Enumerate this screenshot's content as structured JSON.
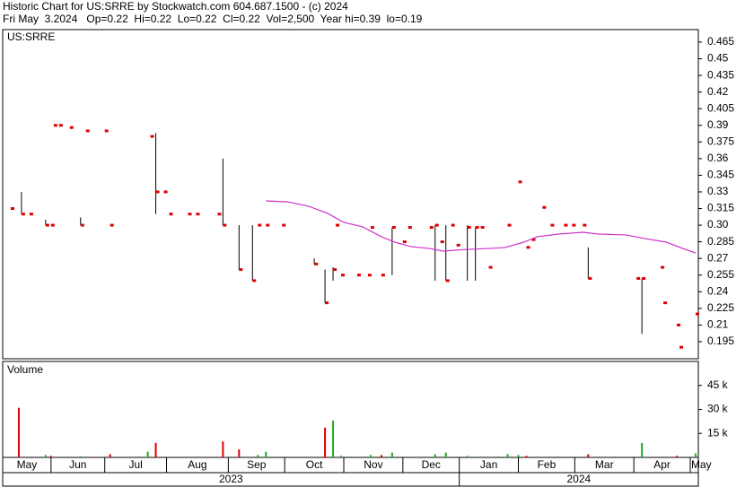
{
  "header": {
    "title": "Historic Chart for US:SRRE by Stockwatch.com 604.687.1500 - (c) 2024",
    "quote": "Fri May  3.2024   Op=0.22  Hi=0.22  Lo=0.22  Cl=0.22  Vol=2,500  Year hi=0.39  lo=0.19"
  },
  "chart_data": [
    {
      "type": "ohlc",
      "label": "US:SRRE",
      "x": [
        3,
        7,
        10,
        16,
        18,
        19,
        21,
        25,
        29,
        31,
        38,
        40,
        55,
        57,
        60,
        62,
        69,
        72,
        80,
        82,
        88,
        93,
        95,
        98,
        104,
        116,
        120,
        123,
        124,
        126,
        132,
        136,
        137,
        141,
        145,
        149,
        151,
        159,
        161,
        163,
        165,
        167,
        169,
        173,
        176,
        178,
        181,
        188,
        192,
        195,
        197,
        201,
        204,
        209,
        212,
        216,
        218,
        236,
        238,
        245,
        246,
        251,
        252,
        258
      ],
      "high": [
        0.315,
        0.33,
        0.31,
        0.305,
        0.3,
        0.39,
        0.39,
        0.388,
        0.307,
        0.385,
        0.385,
        0.3,
        0.38,
        0.383,
        0.33,
        0.31,
        0.31,
        0.31,
        0.31,
        0.36,
        0.3,
        0.3,
        0.3,
        0.3,
        0.3,
        0.27,
        0.26,
        0.262,
        0.3,
        0.255,
        0.255,
        0.255,
        0.298,
        0.255,
        0.298,
        0.285,
        0.298,
        0.298,
        0.3,
        0.285,
        0.3,
        0.3,
        0.282,
        0.3,
        0.298,
        0.298,
        0.262,
        0.3,
        0.339,
        0.28,
        0.287,
        0.316,
        0.3,
        0.3,
        0.3,
        0.3,
        0.28,
        0.252,
        0.252,
        0.262,
        0.23,
        0.21,
        0.19,
        0.22
      ],
      "low": [
        0.315,
        0.31,
        0.31,
        0.3,
        0.3,
        0.39,
        0.39,
        0.388,
        0.3,
        0.385,
        0.385,
        0.3,
        0.38,
        0.31,
        0.33,
        0.31,
        0.31,
        0.31,
        0.31,
        0.3,
        0.26,
        0.25,
        0.3,
        0.3,
        0.3,
        0.265,
        0.23,
        0.25,
        0.3,
        0.255,
        0.255,
        0.255,
        0.298,
        0.255,
        0.255,
        0.285,
        0.298,
        0.298,
        0.25,
        0.285,
        0.25,
        0.3,
        0.282,
        0.25,
        0.25,
        0.298,
        0.262,
        0.3,
        0.339,
        0.28,
        0.287,
        0.316,
        0.3,
        0.3,
        0.3,
        0.3,
        0.252,
        0.252,
        0.202,
        0.262,
        0.23,
        0.21,
        0.19,
        0.22
      ],
      "close": [
        0.315,
        0.31,
        0.31,
        0.3,
        0.3,
        0.39,
        0.39,
        0.388,
        0.3,
        0.385,
        0.385,
        0.3,
        0.38,
        0.33,
        0.33,
        0.31,
        0.31,
        0.31,
        0.31,
        0.3,
        0.26,
        0.25,
        0.3,
        0.3,
        0.3,
        0.265,
        0.23,
        0.26,
        0.3,
        0.255,
        0.255,
        0.255,
        0.298,
        0.255,
        0.298,
        0.285,
        0.298,
        0.298,
        0.3,
        0.285,
        0.25,
        0.3,
        0.282,
        0.298,
        0.298,
        0.298,
        0.262,
        0.3,
        0.339,
        0.28,
        0.287,
        0.316,
        0.3,
        0.3,
        0.3,
        0.3,
        0.252,
        0.252,
        0.252,
        0.262,
        0.23,
        0.21,
        0.19,
        0.22
      ],
      "bar_color": "#000000",
      "close_color": "#dd0000",
      "series": [
        {
          "color": "#cc33cc",
          "x": [
            98,
            106,
            114,
            121,
            127,
            134,
            141,
            146,
            152,
            159,
            164,
            169,
            174,
            181,
            187,
            194,
            199,
            207,
            216,
            222,
            232,
            239,
            247,
            254,
            258
          ],
          "values": [
            0.3219,
            0.3211,
            0.317,
            0.3106,
            0.3025,
            0.2985,
            0.2896,
            0.2847,
            0.2807,
            0.279,
            0.2766,
            0.2775,
            0.2783,
            0.279,
            0.2799,
            0.2847,
            0.2896,
            0.292,
            0.2936,
            0.292,
            0.2912,
            0.288,
            0.2847,
            0.2783,
            0.275
          ]
        }
      ],
      "xlim": [
        0,
        259
      ],
      "ylim": [
        0.1796,
        0.4763
      ],
      "yticks": [
        0.195,
        0.21,
        0.225,
        0.24,
        0.255,
        0.27,
        0.285,
        {
          "value": 0.3,
          "label": "0.30"
        },
        0.315,
        0.33,
        0.345,
        0.36,
        0.375,
        0.39,
        0.405,
        0.42,
        0.435,
        0.45,
        0.465
      ]
    },
    {
      "type": "bar",
      "label": "Volume",
      "x": [
        6,
        16,
        18,
        29,
        40,
        54,
        57,
        82,
        88,
        95,
        98,
        120,
        123,
        126,
        137,
        141,
        145,
        161,
        165,
        173,
        188,
        192,
        195,
        218,
        238,
        251,
        258
      ],
      "values": [
        31000,
        1500,
        1000,
        700,
        2000,
        3600,
        9000,
        10000,
        5000,
        1500,
        3500,
        18600,
        23000,
        1000,
        1500,
        1500,
        3000,
        2000,
        3000,
        1000,
        2000,
        1500,
        1000,
        2000,
        9000,
        1000,
        2500
      ],
      "colors": [
        "#dd0000",
        "#22aa22",
        "#dd0000",
        "#22aa22",
        "#dd0000",
        "#22aa22",
        "#dd0000",
        "#dd0000",
        "#dd0000",
        "#22aa22",
        "#22aa22",
        "#dd0000",
        "#22aa22",
        "#22aa22",
        "#22aa22",
        "#dd0000",
        "#22aa22",
        "#22aa22",
        "#22aa22",
        "#22aa22",
        "#22aa22",
        "#22aa22",
        "#dd0000",
        "#dd0000",
        "#22aa22",
        "#dd0000",
        "#22aa22"
      ],
      "xlim": [
        0,
        259
      ],
      "ylim": [
        0,
        60000
      ],
      "yticks": [
        {
          "value": 15000,
          "label": "15 k"
        },
        {
          "value": 30000,
          "label": "30 k"
        },
        {
          "value": 45000,
          "label": "45 k"
        }
      ],
      "xticks": [
        {
          "value": 0,
          "label": "May"
        },
        {
          "value": 18,
          "label": "Jun"
        },
        {
          "value": 38,
          "label": "Jul"
        },
        {
          "value": 61,
          "label": "Aug"
        },
        {
          "value": 84,
          "label": "Sep"
        },
        {
          "value": 105,
          "label": "Oct"
        },
        {
          "value": 127,
          "label": "Nov"
        },
        {
          "value": 149,
          "label": "Dec"
        },
        {
          "value": 170,
          "label": "Jan"
        },
        {
          "value": 192,
          "label": "Feb"
        },
        {
          "value": 213,
          "label": "Mar"
        },
        {
          "value": 235,
          "label": "Apr"
        },
        {
          "value": 256,
          "label": "May"
        }
      ],
      "year_ticks": [
        {
          "value": 0,
          "label": "2023"
        },
        {
          "value": 170,
          "label": "2024"
        }
      ]
    }
  ]
}
